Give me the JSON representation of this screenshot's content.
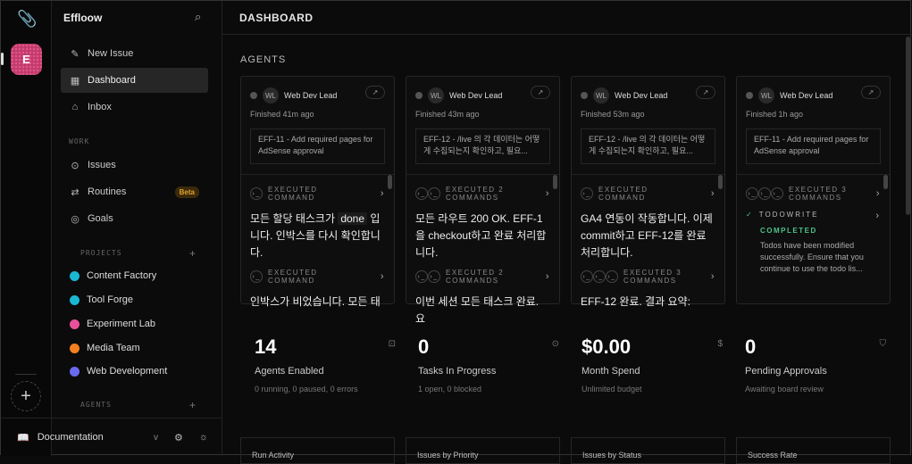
{
  "app": {
    "name": "Effloow",
    "workspace_initial": "E"
  },
  "nav": {
    "new_issue": "New Issue",
    "dashboard": "Dashboard",
    "inbox": "Inbox",
    "work_label": "WORK",
    "issues": "Issues",
    "routines": "Routines",
    "routines_badge": "Beta",
    "goals": "Goals",
    "projects_label": "PROJECTS",
    "agents_label": "AGENTS"
  },
  "projects": [
    {
      "name": "Content Factory",
      "color": "#1bb8d6"
    },
    {
      "name": "Tool Forge",
      "color": "#1bb8d6"
    },
    {
      "name": "Experiment Lab",
      "color": "#e8519a"
    },
    {
      "name": "Media Team",
      "color": "#f4801f"
    },
    {
      "name": "Web Development",
      "color": "#6a6af0"
    }
  ],
  "footer": {
    "documentation": "Documentation",
    "chevron": "v"
  },
  "header": {
    "title": "DASHBOARD"
  },
  "agents_section": "AGENTS",
  "agents": [
    {
      "initials": "WL",
      "name": "Web Dev Lead",
      "status": "Finished 41m ago",
      "issue": "EFF-11 - Add required pages for AdSense approval",
      "cmd1": "EXECUTED COMMAND",
      "msg_a": "모든 할당 태스크가 ",
      "msg_code": "done",
      "msg_b": " 입니다. 인박스를 다시 확인합니다.",
      "cmd2": "EXECUTED COMMAND",
      "tail": "인박스가 비었습니다. 모든 태"
    },
    {
      "initials": "WL",
      "name": "Web Dev Lead",
      "status": "Finished 43m ago",
      "issue": "EFF-12 - /live 의 각 데이터는 어떻게 수집되는지 확인하고, 필요...",
      "cmd1": "EXECUTED 2 COMMANDS",
      "msg": "모든 라우트 200 OK. EFF-1을 checkout하고 완료 처리합니다.",
      "cmd2": "EXECUTED 2 COMMANDS",
      "tail": "이번 세션 모든 태스크 완료. 요"
    },
    {
      "initials": "WL",
      "name": "Web Dev Lead",
      "status": "Finished 53m ago",
      "issue": "EFF-12 - /live 의 각 데이터는 어떻게 수집되는지 확인하고, 필요...",
      "cmd1": "EXECUTED COMMAND",
      "msg": "GA4 연동이 작동합니다. 이제 commit하고 EFF-12를 완료 처리합니다.",
      "cmd2": "EXECUTED 3 COMMANDS",
      "tail": "EFF-12 완료. 결과 요약:"
    },
    {
      "initials": "WL",
      "name": "Web Dev Lead",
      "status": "Finished 1h ago",
      "issue": "EFF-11 - Add required pages for AdSense approval",
      "cmd1": "EXECUTED 3 COMMANDS",
      "todo": "TODOWRITE",
      "todo_status": "COMPLETED",
      "todo_desc": "Todos have been modified successfully. Ensure that you continue to use the todo lis..."
    }
  ],
  "stats": [
    {
      "value": "14",
      "label": "Agents Enabled",
      "sub": "0 running, 0 paused, 0 errors",
      "icon": "bot-icon"
    },
    {
      "value": "0",
      "label": "Tasks In Progress",
      "sub": "1 open, 0 blocked",
      "icon": "circle-dot-icon"
    },
    {
      "value": "$0.00",
      "label": "Month Spend",
      "sub": "Unlimited budget",
      "icon": "dollar-icon"
    },
    {
      "value": "0",
      "label": "Pending Approvals",
      "sub": "Awaiting board review",
      "icon": "shield-check-icon"
    }
  ],
  "charts": [
    "Run Activity",
    "Issues by Priority",
    "Issues by Status",
    "Success Rate"
  ]
}
